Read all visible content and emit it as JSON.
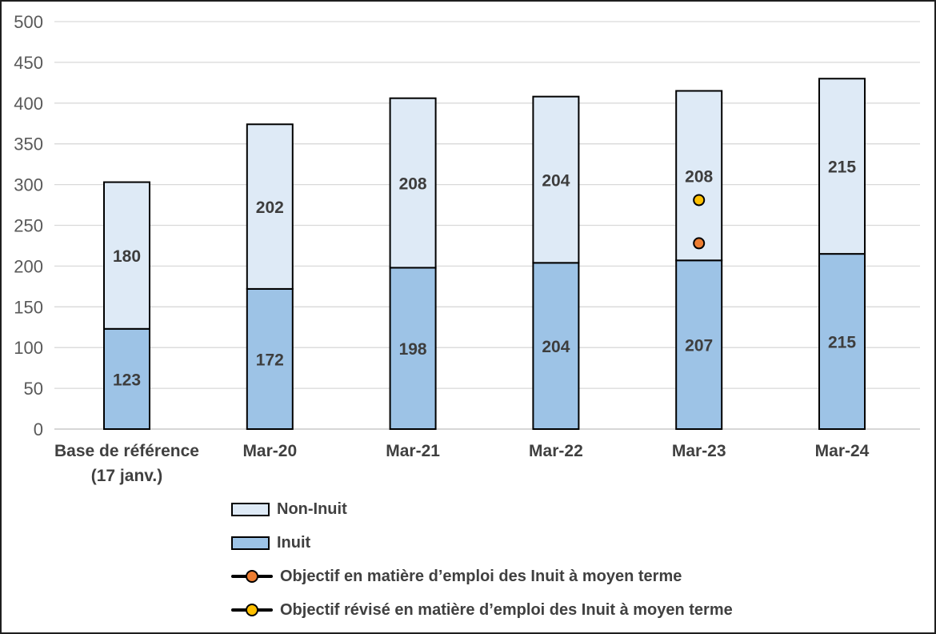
{
  "chart_data": {
    "type": "bar",
    "stacked": true,
    "title": "",
    "xlabel": "",
    "ylabel": "",
    "categories": [
      "Base de référence\n(17 janv.)",
      "Mar-20",
      "Mar-21",
      "Mar-22",
      "Mar-23",
      "Mar-24"
    ],
    "series": [
      {
        "name": "Inuit",
        "color": "#9dc3e6",
        "values": [
          123,
          172,
          198,
          204,
          207,
          215
        ]
      },
      {
        "name": "Non-Inuit",
        "color": "#deeaf6",
        "values": [
          180,
          202,
          208,
          204,
          208,
          215
        ]
      }
    ],
    "point_series": [
      {
        "name": "Objectif en matière d’emploi des Inuit à moyen terme",
        "color": "#ed7d31",
        "category_index": 4,
        "value": 228
      },
      {
        "name": "Objectif révisé en matière d’emploi des Inuit à moyen terme",
        "color": "#ffc000",
        "category_index": 4,
        "value": 281
      }
    ],
    "ylim": [
      0,
      500
    ],
    "ytick_interval": 50,
    "grid": true,
    "legend_position": "bottom-left"
  },
  "legend": {
    "items": [
      {
        "label": "Non-Inuit",
        "swatch": "rect",
        "color": "#deeaf6"
      },
      {
        "label": "Inuit",
        "swatch": "rect",
        "color": "#9dc3e6"
      },
      {
        "label": "Objectif en matière d’emploi des Inuit à moyen terme",
        "swatch": "line-dot",
        "color": "#ed7d31"
      },
      {
        "label": "Objectif révisé en matière d’emploi des Inuit à moyen terme",
        "swatch": "line-dot",
        "color": "#ffc000"
      }
    ]
  },
  "colors": {
    "grid": "#d9d9d9",
    "axis_line": "#bfbfbf",
    "tick_text": "#595959",
    "label_text": "#3d3d3d",
    "category_text": "#404040",
    "bar_border": "#000000"
  }
}
